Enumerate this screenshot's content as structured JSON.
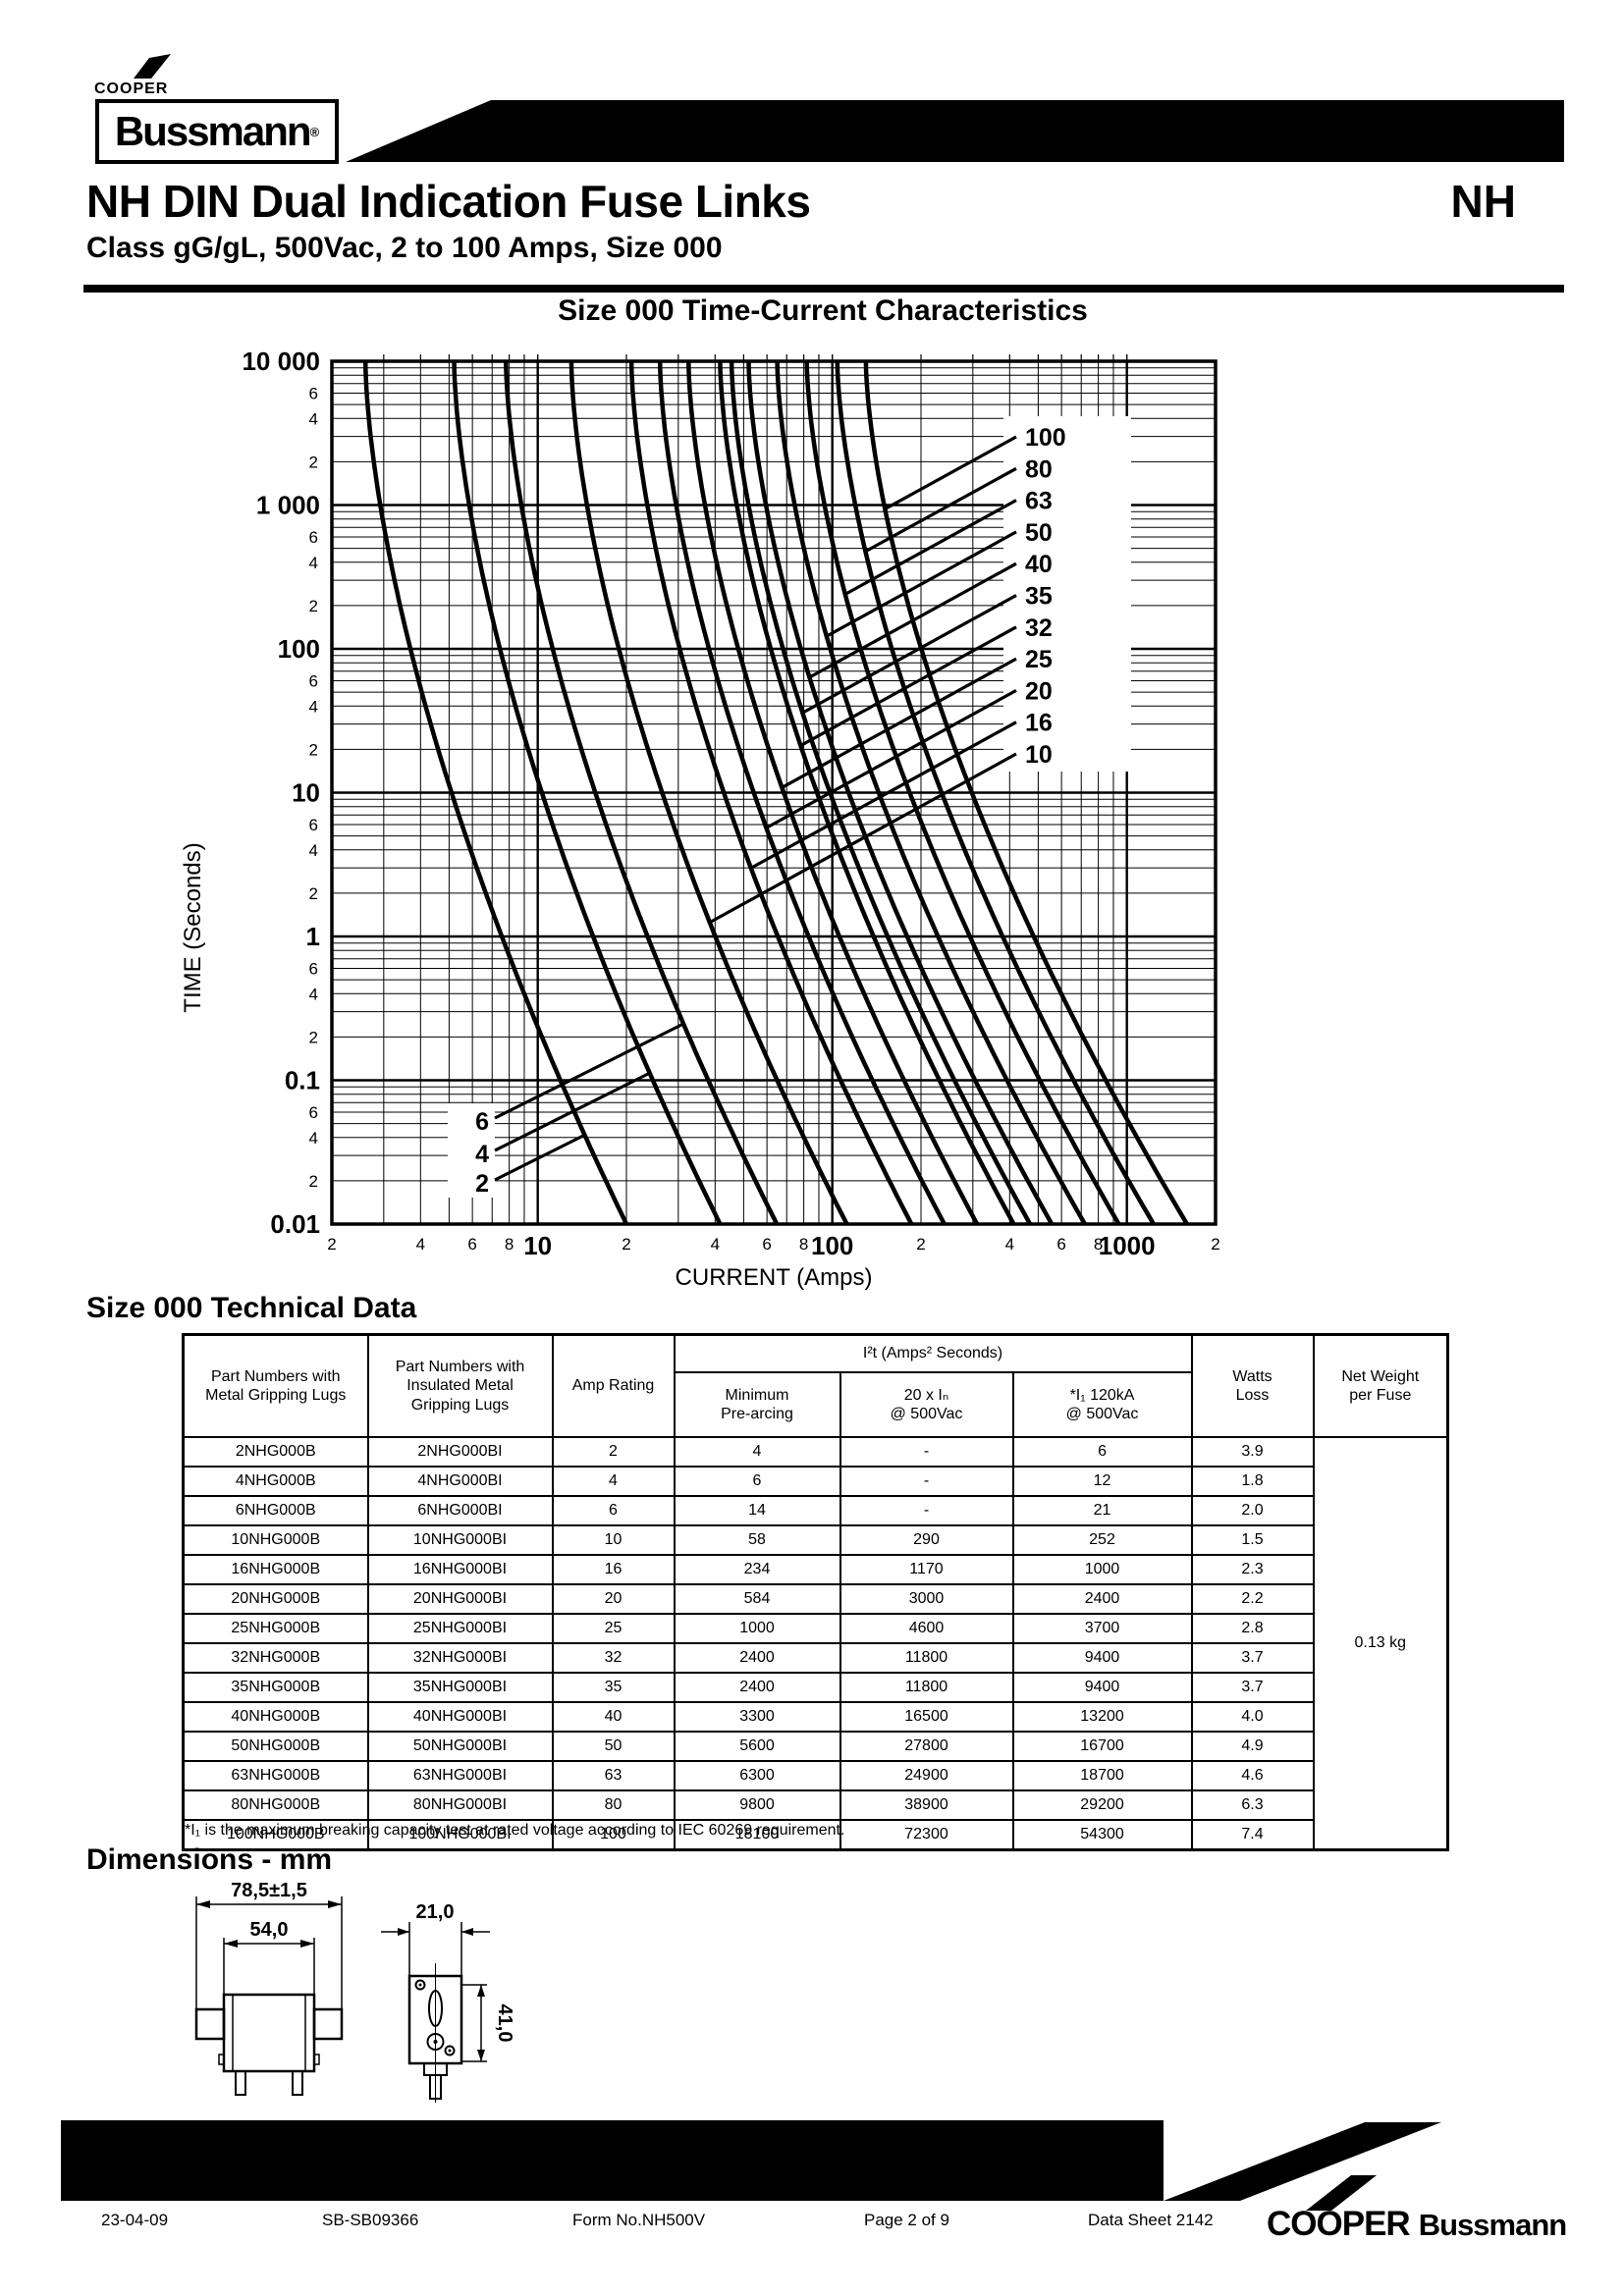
{
  "header": {
    "cooper_mini": "COOPER",
    "bussmann_logo": "Bussmann",
    "registered_mark": "®",
    "title": "NH DIN Dual Indication Fuse Links",
    "corner_code": "NH",
    "subtitle": "Class gG/gL, 500Vac, 2 to 100 Amps, Size 000"
  },
  "chart_data": {
    "type": "line",
    "title": "Size 000 Time-Current Characteristics",
    "xlabel": "CURRENT (Amps)",
    "ylabel": "TIME (Seconds)",
    "xscale": "log",
    "yscale": "log",
    "xlim": [
      2,
      2000
    ],
    "ylim": [
      0.01,
      10000
    ],
    "grid": true,
    "x_major_ticks": [
      10,
      100,
      1000
    ],
    "x_major_tick_labels": [
      "10",
      "100",
      "1000"
    ],
    "x_minor_tick_labels": [
      "2",
      "4",
      "6",
      "8"
    ],
    "x_end_tick_label": "2",
    "y_major_ticks": [
      10000,
      1000,
      100,
      10,
      1,
      0.1,
      0.01
    ],
    "y_major_tick_labels": [
      "10 000",
      "1 000",
      "100",
      "10",
      "1",
      "0.1",
      "0.01"
    ],
    "y_minor_tick_labels": [
      "6",
      "4",
      "2"
    ],
    "legend_right_labels": [
      "100",
      "80",
      "63",
      "50",
      "40",
      "35",
      "32",
      "25",
      "20",
      "16",
      "10"
    ],
    "legend_left_labels": [
      "6",
      "4",
      "2"
    ],
    "model": {
      "t_top_s": 10000,
      "t_bottom_s": 0.01,
      "current_multiple_at_top": 1.3,
      "curvature_exponent": 1.6
    },
    "series": [
      {
        "rating_amps": 2,
        "current_multiple_at_bottom": 10.0,
        "points_amps_seconds": [
          [
            2.6,
            10000
          ],
          [
            3.7,
            100
          ],
          [
            7.6,
            1
          ],
          [
            20,
            0.01
          ]
        ]
      },
      {
        "rating_amps": 4,
        "current_multiple_at_bottom": 10.4,
        "points_amps_seconds": [
          [
            5.2,
            10000
          ],
          [
            7.4,
            100
          ],
          [
            15.4,
            1
          ],
          [
            41.5,
            0.01
          ]
        ]
      },
      {
        "rating_amps": 6,
        "current_multiple_at_bottom": 10.8,
        "points_amps_seconds": [
          [
            7.8,
            10000
          ],
          [
            11.2,
            100
          ],
          [
            23.5,
            1
          ],
          [
            64.5,
            0.01
          ]
        ]
      },
      {
        "rating_amps": 10,
        "current_multiple_at_bottom": 11.2,
        "points_amps_seconds": [
          [
            13,
            10000
          ],
          [
            18.8,
            100
          ],
          [
            40,
            1
          ],
          [
            112,
            0.01
          ]
        ]
      },
      {
        "rating_amps": 16,
        "current_multiple_at_bottom": 11.6,
        "points_amps_seconds": [
          [
            20.8,
            10000
          ],
          [
            30.3,
            100
          ],
          [
            65,
            1
          ],
          [
            185,
            0.01
          ]
        ]
      },
      {
        "rating_amps": 20,
        "current_multiple_at_bottom": 12.0,
        "points_amps_seconds": [
          [
            26,
            10000
          ],
          [
            38.1,
            100
          ],
          [
            83,
            1
          ],
          [
            240,
            0.01
          ]
        ]
      },
      {
        "rating_amps": 25,
        "current_multiple_at_bottom": 12.4,
        "points_amps_seconds": [
          [
            32.5,
            10000
          ],
          [
            47.9,
            100
          ],
          [
            106,
            1
          ],
          [
            311,
            0.01
          ]
        ]
      },
      {
        "rating_amps": 32,
        "current_multiple_at_bottom": 12.9,
        "points_amps_seconds": [
          [
            41.6,
            10000
          ],
          [
            61.7,
            100
          ],
          [
            138,
            1
          ],
          [
            412,
            0.01
          ]
        ]
      },
      {
        "rating_amps": 35,
        "current_multiple_at_bottom": 13.4,
        "points_amps_seconds": [
          [
            45.5,
            10000
          ],
          [
            67.9,
            100
          ],
          [
            154,
            1
          ],
          [
            468,
            0.01
          ]
        ]
      },
      {
        "rating_amps": 40,
        "current_multiple_at_bottom": 13.9,
        "points_amps_seconds": [
          [
            52,
            10000
          ],
          [
            78.1,
            100
          ],
          [
            179,
            1
          ],
          [
            554,
            0.01
          ]
        ]
      },
      {
        "rating_amps": 50,
        "current_multiple_at_bottom": 14.4,
        "points_amps_seconds": [
          [
            65,
            10000
          ],
          [
            98.3,
            100
          ],
          [
            228,
            1
          ],
          [
            719,
            0.01
          ]
        ]
      },
      {
        "rating_amps": 63,
        "current_multiple_at_bottom": 14.9,
        "points_amps_seconds": [
          [
            81.9,
            10000
          ],
          [
            125,
            100
          ],
          [
            293,
            1
          ],
          [
            939,
            0.01
          ]
        ]
      },
      {
        "rating_amps": 80,
        "current_multiple_at_bottom": 15.4,
        "points_amps_seconds": [
          [
            104,
            10000
          ],
          [
            159,
            100
          ],
          [
            379,
            1
          ],
          [
            1235,
            0.01
          ]
        ]
      },
      {
        "rating_amps": 100,
        "current_multiple_at_bottom": 16.0,
        "points_amps_seconds": [
          [
            130,
            10000
          ],
          [
            200,
            100
          ],
          [
            483,
            1
          ],
          [
            1601,
            0.01
          ]
        ]
      }
    ]
  },
  "table": {
    "heading": "Size 000 Technical Data",
    "headers": {
      "part_metal": "Part Numbers with\nMetal Gripping Lugs",
      "part_insulated": "Part Numbers with\nInsulated Metal\nGripping Lugs",
      "amp_rating": "Amp Rating",
      "i2t_group": "I²t (Amps² Seconds)",
      "min_prearcing": "Minimum\nPre-arcing",
      "twenty_in": "20 x Iₙ\n@ 500Vac",
      "i1_120ka": "*I₁  120kA\n@ 500Vac",
      "watts_loss": "Watts\nLoss",
      "net_weight": "Net Weight\nper Fuse"
    },
    "rows": [
      [
        "2NHG000B",
        "2NHG000BI",
        "2",
        "4",
        "-",
        "6",
        "3.9"
      ],
      [
        "4NHG000B",
        "4NHG000BI",
        "4",
        "6",
        "-",
        "12",
        "1.8"
      ],
      [
        "6NHG000B",
        "6NHG000BI",
        "6",
        "14",
        "-",
        "21",
        "2.0"
      ],
      [
        "10NHG000B",
        "10NHG000BI",
        "10",
        "58",
        "290",
        "252",
        "1.5"
      ],
      [
        "16NHG000B",
        "16NHG000BI",
        "16",
        "234",
        "1170",
        "1000",
        "2.3"
      ],
      [
        "20NHG000B",
        "20NHG000BI",
        "20",
        "584",
        "3000",
        "2400",
        "2.2"
      ],
      [
        "25NHG000B",
        "25NHG000BI",
        "25",
        "1000",
        "4600",
        "3700",
        "2.8"
      ],
      [
        "32NHG000B",
        "32NHG000BI",
        "32",
        "2400",
        "11800",
        "9400",
        "3.7"
      ],
      [
        "35NHG000B",
        "35NHG000BI",
        "35",
        "2400",
        "11800",
        "9400",
        "3.7"
      ],
      [
        "40NHG000B",
        "40NHG000BI",
        "40",
        "3300",
        "16500",
        "13200",
        "4.0"
      ],
      [
        "50NHG000B",
        "50NHG000BI",
        "50",
        "5600",
        "27800",
        "16700",
        "4.9"
      ],
      [
        "63NHG000B",
        "63NHG000BI",
        "63",
        "6300",
        "24900",
        "18700",
        "4.6"
      ],
      [
        "80NHG000B",
        "80NHG000BI",
        "80",
        "9800",
        "38900",
        "29200",
        "6.3"
      ],
      [
        "100NHG000B",
        "100NHG000BI",
        "100",
        "18100",
        "72300",
        "54300",
        "7.4"
      ]
    ],
    "net_weight_value": "0.13 kg",
    "footnote": "*I₁ is the maximum breaking capacity test at rated voltage according to IEC 60269 requirement."
  },
  "dimensions": {
    "heading": "Dimensions - mm",
    "width_outer": "78,5±1,5",
    "width_inner": "54,0",
    "depth": "21,0",
    "height": "41,0"
  },
  "footer": {
    "date": "23-04-09",
    "code": "SB-SB09366",
    "form": "Form No.NH500V",
    "page": "Page 2 of 9",
    "datasheet": "Data Sheet 2142",
    "brand_cooper": "COOPER",
    "brand_bussmann": "Bussmann"
  }
}
